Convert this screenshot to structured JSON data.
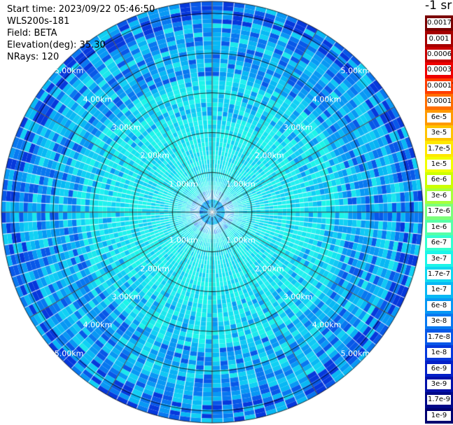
{
  "info": {
    "start_time": "Start time: 2023/09/22 05:46:50",
    "instrument": "WLS200s-181",
    "field": "Field: BETA",
    "elevation": "Elevation(deg): 35.30",
    "nrays": "NRays: 120"
  },
  "colorbar": {
    "unit": "-1 sr",
    "entries": [
      {
        "label": "0.0017",
        "color": "#7a0000"
      },
      {
        "label": "0.001",
        "color": "#a50000"
      },
      {
        "label": "0.0006",
        "color": "#c80000"
      },
      {
        "label": "0.0003",
        "color": "#ee0000"
      },
      {
        "label": "0.00017",
        "color": "#ff3c00"
      },
      {
        "label": "0.0001",
        "color": "#ff6e00"
      },
      {
        "label": "6e-5",
        "color": "#ff9a00"
      },
      {
        "label": "3e-5",
        "color": "#ffc400"
      },
      {
        "label": "1.7e-5",
        "color": "#ffe800"
      },
      {
        "label": "1e-5",
        "color": "#f2ff00"
      },
      {
        "label": "6e-6",
        "color": "#ccff00"
      },
      {
        "label": "3e-6",
        "color": "#a8ff3c"
      },
      {
        "label": "1.7e-6",
        "color": "#7cff7a"
      },
      {
        "label": "1e-6",
        "color": "#56ffa8"
      },
      {
        "label": "6e-7",
        "color": "#34ffd0"
      },
      {
        "label": "3e-7",
        "color": "#1cf5e8"
      },
      {
        "label": "1.7e-7",
        "color": "#10d8f0"
      },
      {
        "label": "1e-7",
        "color": "#08b8f4"
      },
      {
        "label": "6e-8",
        "color": "#0898f4"
      },
      {
        "label": "3e-8",
        "color": "#0878f0"
      },
      {
        "label": "1.7e-8",
        "color": "#0858e8"
      },
      {
        "label": "1e-8",
        "color": "#0638dc"
      },
      {
        "label": "6e-9",
        "color": "#0420c8"
      },
      {
        "label": "3e-9",
        "color": "#0210a8"
      },
      {
        "label": "1.7e-9",
        "color": "#000888"
      },
      {
        "label": "1e-9",
        "color": "#000070"
      }
    ]
  },
  "range_rings": {
    "labels": [
      "1.00km",
      "2.00km",
      "3.00km",
      "4.00km",
      "5.00km"
    ]
  },
  "plot": {
    "field": "BETA",
    "nrays": 120,
    "max_range_km": 5.3,
    "sweep_line_angles_deg": [
      0,
      30,
      60,
      90,
      120,
      150,
      180,
      210,
      240,
      270,
      300,
      330
    ],
    "colors": {
      "near": [
        "#14e4f0",
        "#1cf5e8",
        "#22f0f0",
        "#10d0f4"
      ],
      "mid": [
        "#10c8f4",
        "#08b0f4",
        "#1ce8ec",
        "#0898f4"
      ],
      "far": [
        "#0898f4",
        "#0878f0",
        "#0858e8",
        "#08b8f4",
        "#10d0f4"
      ],
      "edge": "#0638dc",
      "ring_line": "#000000",
      "gap_line": "#ffffff"
    }
  }
}
